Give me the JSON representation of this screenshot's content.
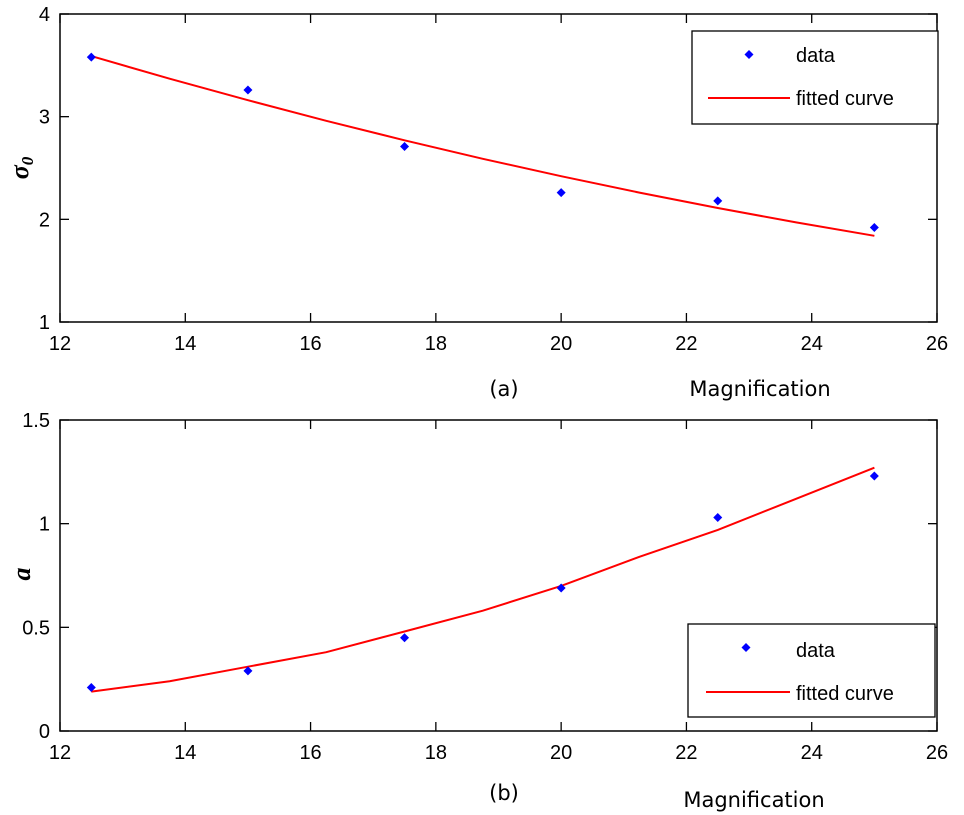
{
  "chart_data": [
    {
      "type": "scatter",
      "panel_label": "(a)",
      "xlabel": "Magnification",
      "ylabel": "σ",
      "ylabel_subscript": "0",
      "xlim": [
        12,
        26
      ],
      "ylim": [
        1,
        4
      ],
      "xticks": [
        12,
        14,
        16,
        18,
        20,
        22,
        24,
        26
      ],
      "yticks": [
        1,
        2,
        3,
        4
      ],
      "grid": false,
      "legend_position": "top-right",
      "series": [
        {
          "name": "data",
          "style": "markers",
          "color": "#0000ff",
          "points": [
            {
              "x": 12.5,
              "y": 3.58
            },
            {
              "x": 15,
              "y": 3.26
            },
            {
              "x": 17.5,
              "y": 2.71
            },
            {
              "x": 20,
              "y": 2.26
            },
            {
              "x": 22.5,
              "y": 2.18
            },
            {
              "x": 25,
              "y": 1.92
            }
          ]
        },
        {
          "name": "fitted curve",
          "style": "line",
          "color": "#ff0000",
          "points": [
            {
              "x": 12.5,
              "y": 3.59
            },
            {
              "x": 13.75,
              "y": 3.37
            },
            {
              "x": 15,
              "y": 3.16
            },
            {
              "x": 16.25,
              "y": 2.96
            },
            {
              "x": 17.5,
              "y": 2.77
            },
            {
              "x": 18.75,
              "y": 2.59
            },
            {
              "x": 20,
              "y": 2.42
            },
            {
              "x": 21.25,
              "y": 2.26
            },
            {
              "x": 22.5,
              "y": 2.11
            },
            {
              "x": 23.75,
              "y": 1.97
            },
            {
              "x": 25,
              "y": 1.84
            }
          ]
        }
      ]
    },
    {
      "type": "scatter",
      "panel_label": "(b)",
      "xlabel": "Magnification",
      "ylabel": "a",
      "ylabel_subscript": "",
      "xlim": [
        12,
        26
      ],
      "ylim": [
        0,
        1.5
      ],
      "xticks": [
        12,
        14,
        16,
        18,
        20,
        22,
        24,
        26
      ],
      "yticks": [
        0,
        0.5,
        1,
        1.5
      ],
      "grid": false,
      "legend_position": "bottom-right",
      "series": [
        {
          "name": "data",
          "style": "markers",
          "color": "#0000ff",
          "points": [
            {
              "x": 12.5,
              "y": 0.21
            },
            {
              "x": 15,
              "y": 0.29
            },
            {
              "x": 17.5,
              "y": 0.45
            },
            {
              "x": 20,
              "y": 0.69
            },
            {
              "x": 22.5,
              "y": 1.03
            },
            {
              "x": 25,
              "y": 1.23
            }
          ]
        },
        {
          "name": "fitted curve",
          "style": "line",
          "color": "#ff0000",
          "points": [
            {
              "x": 12.5,
              "y": 0.19
            },
            {
              "x": 13.75,
              "y": 0.24
            },
            {
              "x": 15,
              "y": 0.31
            },
            {
              "x": 16.25,
              "y": 0.38
            },
            {
              "x": 17.5,
              "y": 0.48
            },
            {
              "x": 18.75,
              "y": 0.58
            },
            {
              "x": 20,
              "y": 0.7
            },
            {
              "x": 21.25,
              "y": 0.84
            },
            {
              "x": 22.5,
              "y": 0.97
            },
            {
              "x": 23.75,
              "y": 1.12
            },
            {
              "x": 25,
              "y": 1.27
            }
          ]
        }
      ]
    }
  ]
}
